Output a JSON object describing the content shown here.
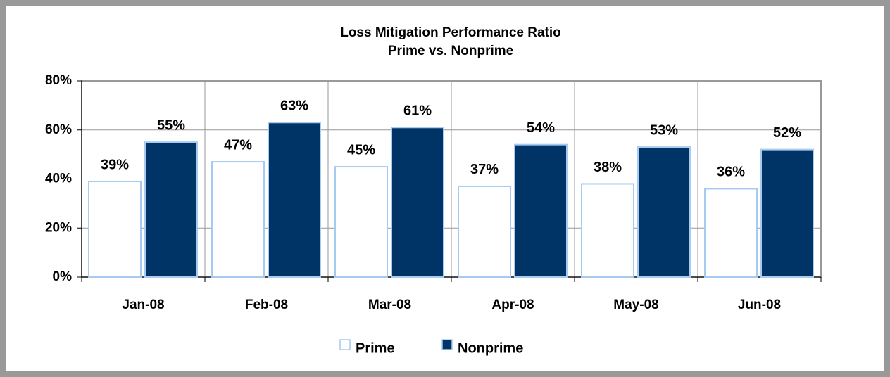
{
  "chart_data": {
    "type": "bar",
    "title": "Loss Mitigation Performance Ratio",
    "subtitle": "Prime vs. Nonprime",
    "categories": [
      "Jan-08",
      "Feb-08",
      "Mar-08",
      "Apr-08",
      "May-08",
      "Jun-08"
    ],
    "series": [
      {
        "name": "Prime",
        "color": "#ffffff",
        "values": [
          39,
          47,
          45,
          37,
          38,
          36
        ],
        "value_labels": [
          "39%",
          "47%",
          "45%",
          "37%",
          "38%",
          "36%"
        ]
      },
      {
        "name": "Nonprime",
        "color": "#003366",
        "values": [
          55,
          63,
          61,
          54,
          53,
          52
        ],
        "value_labels": [
          "55%",
          "63%",
          "61%",
          "54%",
          "53%",
          "52%"
        ]
      }
    ],
    "ylim": [
      0,
      80
    ],
    "yticks": [
      {
        "value": 0,
        "label": "0%"
      },
      {
        "value": 20,
        "label": "20%"
      },
      {
        "value": 40,
        "label": "40%"
      },
      {
        "value": 60,
        "label": "60%"
      },
      {
        "value": 80,
        "label": "80%"
      }
    ],
    "grid": true,
    "legend": "bottom"
  }
}
